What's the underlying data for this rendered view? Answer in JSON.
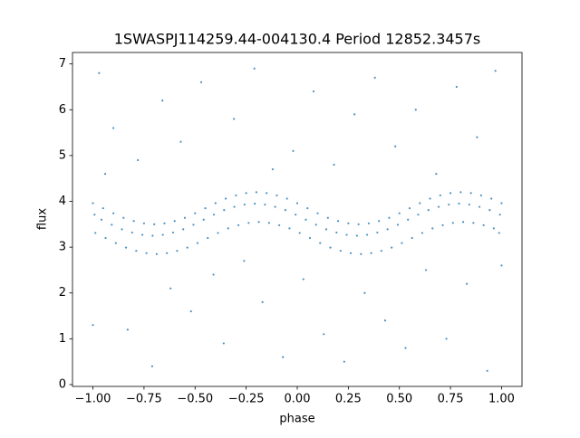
{
  "chart_data": {
    "type": "scatter",
    "title": "1SWASPJ114259.44-004130.4 Period 12852.3457s",
    "x_label": "phase",
    "y_label": "flux",
    "color": "#1f77b4",
    "x": [
      -1.0,
      -0.988,
      -0.992,
      -0.95,
      -0.938,
      -0.958,
      -0.9,
      -0.888,
      -0.908,
      -0.85,
      -0.838,
      -0.858,
      -0.8,
      -0.788,
      -0.808,
      -0.75,
      -0.738,
      -0.758,
      -0.7,
      -0.688,
      -0.708,
      -0.65,
      -0.638,
      -0.658,
      -0.6,
      -0.588,
      -0.608,
      -0.55,
      -0.538,
      -0.558,
      -0.5,
      -0.488,
      -0.508,
      -0.45,
      -0.438,
      -0.458,
      -0.4,
      -0.388,
      -0.408,
      -0.35,
      -0.338,
      -0.358,
      -0.3,
      -0.288,
      -0.308,
      -0.25,
      -0.238,
      -0.258,
      -0.2,
      -0.188,
      -0.208,
      -0.15,
      -0.138,
      -0.158,
      -0.1,
      -0.088,
      -0.108,
      -0.05,
      -0.038,
      -0.058,
      0,
      0.012,
      -0.008,
      0.05,
      0.062,
      0.042,
      0.1,
      0.112,
      0.092,
      0.15,
      0.162,
      0.142,
      0.2,
      0.212,
      0.192,
      0.25,
      0.262,
      0.242,
      0.3,
      0.312,
      0.292,
      0.35,
      0.362,
      0.342,
      0.4,
      0.412,
      0.392,
      0.45,
      0.462,
      0.442,
      0.5,
      0.512,
      0.492,
      0.55,
      0.562,
      0.542,
      0.6,
      0.612,
      0.592,
      0.65,
      0.662,
      0.642,
      0.7,
      0.712,
      0.692,
      0.75,
      0.762,
      0.742,
      0.8,
      0.812,
      0.792,
      0.85,
      0.862,
      0.842,
      0.9,
      0.912,
      0.892,
      0.95,
      0.962,
      0.942,
      1.0,
      0.988,
      0.992,
      -0.97,
      -0.9,
      -0.83,
      -0.78,
      -0.71,
      -0.66,
      -0.62,
      -0.57,
      -0.52,
      -0.47,
      -0.41,
      -0.36,
      -0.31,
      -0.26,
      -0.21,
      -0.17,
      -0.12,
      -0.07,
      -0.02,
      0.03,
      0.08,
      0.13,
      0.18,
      0.23,
      0.28,
      0.33,
      0.38,
      0.43,
      0.48,
      0.53,
      0.58,
      0.63,
      0.68,
      0.73,
      0.78,
      0.83,
      0.88,
      0.93,
      0.97,
      1.0,
      -1.0,
      -0.94
    ],
    "values": [
      3.96,
      3.31,
      3.71,
      3.85,
      3.2,
      3.6,
      3.74,
      3.09,
      3.49,
      3.64,
      2.99,
      3.39,
      3.57,
      2.92,
      3.32,
      3.52,
      2.87,
      3.27,
      3.5,
      2.85,
      3.25,
      3.52,
      2.87,
      3.27,
      3.57,
      2.92,
      3.32,
      3.64,
      2.99,
      3.39,
      3.74,
      3.09,
      3.49,
      3.85,
      3.2,
      3.6,
      3.96,
      3.31,
      3.71,
      4.06,
      3.41,
      3.81,
      4.13,
      3.48,
      3.88,
      4.18,
      3.53,
      3.93,
      4.2,
      3.55,
      3.95,
      4.18,
      3.53,
      3.93,
      4.13,
      3.48,
      3.88,
      4.06,
      3.41,
      3.81,
      3.96,
      3.31,
      3.71,
      3.85,
      3.2,
      3.6,
      3.74,
      3.09,
      3.49,
      3.64,
      2.99,
      3.39,
      3.57,
      2.92,
      3.32,
      3.52,
      2.87,
      3.27,
      3.5,
      2.85,
      3.25,
      3.52,
      2.87,
      3.27,
      3.57,
      2.92,
      3.32,
      3.64,
      2.99,
      3.39,
      3.74,
      3.09,
      3.49,
      3.85,
      3.2,
      3.6,
      3.96,
      3.31,
      3.71,
      4.06,
      3.41,
      3.81,
      4.13,
      3.48,
      3.88,
      4.18,
      3.53,
      3.93,
      4.2,
      3.55,
      3.95,
      4.18,
      3.53,
      3.93,
      4.13,
      3.48,
      3.88,
      4.06,
      3.41,
      3.81,
      3.96,
      3.31,
      3.71,
      6.8,
      5.6,
      1.2,
      4.9,
      0.4,
      6.2,
      2.1,
      5.3,
      1.6,
      6.6,
      2.4,
      0.9,
      5.8,
      2.7,
      6.9,
      1.8,
      4.7,
      0.6,
      5.1,
      2.3,
      6.4,
      1.1,
      4.8,
      0.5,
      5.9,
      2.0,
      6.7,
      1.4,
      5.2,
      0.8,
      6.0,
      2.5,
      4.6,
      1.0,
      6.5,
      2.2,
      5.4,
      0.3,
      6.85,
      2.6,
      1.3,
      4.6
    ],
    "xlim": [
      -1.1,
      1.1
    ],
    "ylim": [
      -0.04,
      7.25
    ],
    "xticks": [
      {
        "value": -1.0,
        "label": "−1.00"
      },
      {
        "value": -0.75,
        "label": "−0.75"
      },
      {
        "value": -0.5,
        "label": "−0.50"
      },
      {
        "value": -0.25,
        "label": "−0.25"
      },
      {
        "value": 0,
        "label": "0.00"
      },
      {
        "value": 0.25,
        "label": "0.25"
      },
      {
        "value": 0.5,
        "label": "0.50"
      },
      {
        "value": 0.75,
        "label": "0.75"
      },
      {
        "value": 1.0,
        "label": "1.00"
      }
    ],
    "yticks": [
      0,
      1,
      2,
      3,
      4,
      5,
      6,
      7
    ]
  }
}
